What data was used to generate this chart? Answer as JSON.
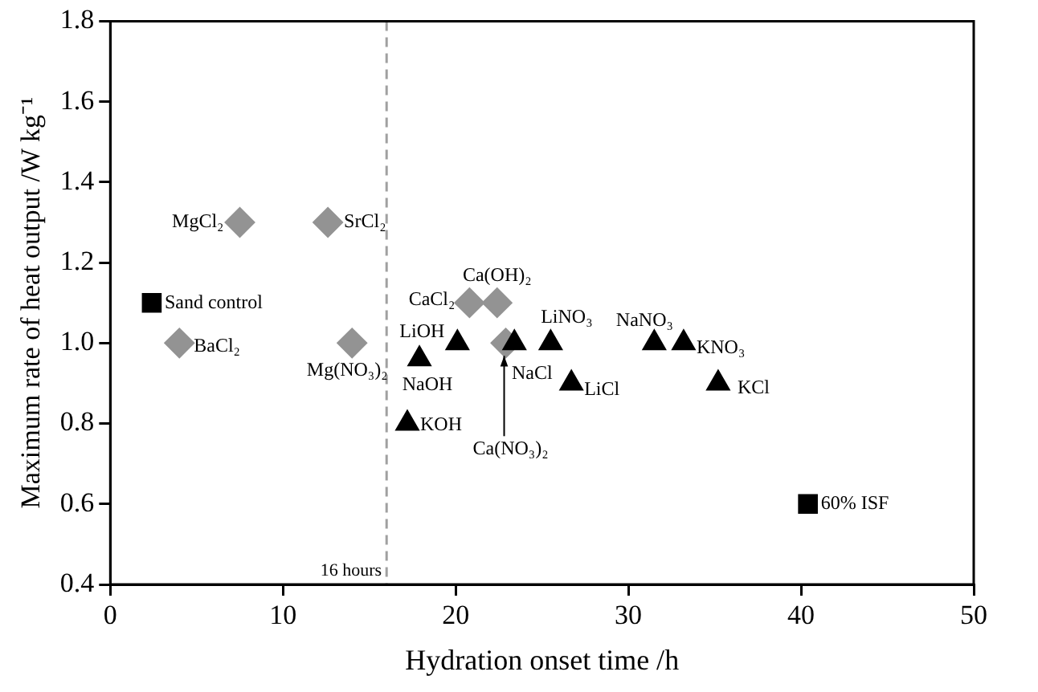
{
  "chart_data": {
    "type": "scatter",
    "xlabel": "Hydration onset time /h",
    "ylabel": "Maximum rate of heat output /W kg⁻¹",
    "xlim": [
      0,
      50
    ],
    "xticks": [
      0,
      10,
      20,
      30,
      40,
      50
    ],
    "ylim": [
      0.4,
      1.8
    ],
    "yticks": [
      {
        "value": 0.4,
        "label": "0.4"
      },
      {
        "value": 0.6,
        "label": "0.6"
      },
      {
        "value": 0.8,
        "label": "0.8"
      },
      {
        "value": 1.0,
        "label": "1.0"
      },
      {
        "value": 1.2,
        "label": "1.2"
      },
      {
        "value": 1.4,
        "label": "1.4"
      },
      {
        "value": 1.6,
        "label": "1.6"
      },
      {
        "value": 1.8,
        "label": "1.8"
      }
    ],
    "grid": false,
    "legend": false,
    "series": [
      {
        "color": "#939393",
        "marker": "diamond",
        "x": [
          7.5,
          12.6,
          4.0,
          14.0,
          20.8,
          22.4,
          22.9
        ],
        "values": [
          1.3,
          1.3,
          1.0,
          1.0,
          1.1,
          1.1,
          1.0
        ]
      },
      {
        "color": "#000000",
        "marker": "triangle",
        "x": [
          20.1,
          17.9,
          17.2,
          23.4,
          25.5,
          26.7,
          31.5,
          33.2,
          35.2
        ],
        "values": [
          1.0,
          0.96,
          0.8,
          1.0,
          1.0,
          0.9,
          1.0,
          1.0,
          0.9
        ]
      },
      {
        "color": "#000000",
        "marker": "square",
        "x": [
          2.4,
          40.4
        ],
        "values": [
          1.1,
          0.6
        ]
      }
    ],
    "ref_lines": [
      {
        "axis": "x",
        "value": 16,
        "label": "16 hours",
        "color": "#a0a0a0",
        "line_style": "dashed"
      }
    ],
    "annotations": [
      {
        "text": "MgCl₂",
        "x": 7.5,
        "y": 1.3
      },
      {
        "text": "SrCl₂",
        "x": 12.6,
        "y": 1.3
      },
      {
        "text": "BaCl₂",
        "x": 4.0,
        "y": 1.0
      },
      {
        "text": "Mg(NO₃)₂",
        "x": 14.0,
        "y": 1.0
      },
      {
        "text": "CaCl₂",
        "x": 20.8,
        "y": 1.1
      },
      {
        "text": "Ca(OH)₂",
        "x": 22.4,
        "y": 1.1
      },
      {
        "text": "Ca(NO₃)₂",
        "x": 22.9,
        "y": 1.0
      },
      {
        "text": "LiOH",
        "x": 20.1,
        "y": 1.0
      },
      {
        "text": "NaOH",
        "x": 17.9,
        "y": 0.96
      },
      {
        "text": "KOH",
        "x": 17.2,
        "y": 0.8
      },
      {
        "text": "NaCl",
        "x": 23.4,
        "y": 1.0
      },
      {
        "text": "LiNO₃",
        "x": 25.5,
        "y": 1.0
      },
      {
        "text": "LiCl",
        "x": 26.7,
        "y": 0.9
      },
      {
        "text": "NaNO₃",
        "x": 31.5,
        "y": 1.0
      },
      {
        "text": "KNO₃",
        "x": 33.2,
        "y": 1.0
      },
      {
        "text": "KCl",
        "x": 35.2,
        "y": 0.9
      },
      {
        "text": "Sand control",
        "x": 2.4,
        "y": 1.1
      },
      {
        "text": "60% ISF",
        "x": 40.4,
        "y": 0.6
      }
    ]
  }
}
